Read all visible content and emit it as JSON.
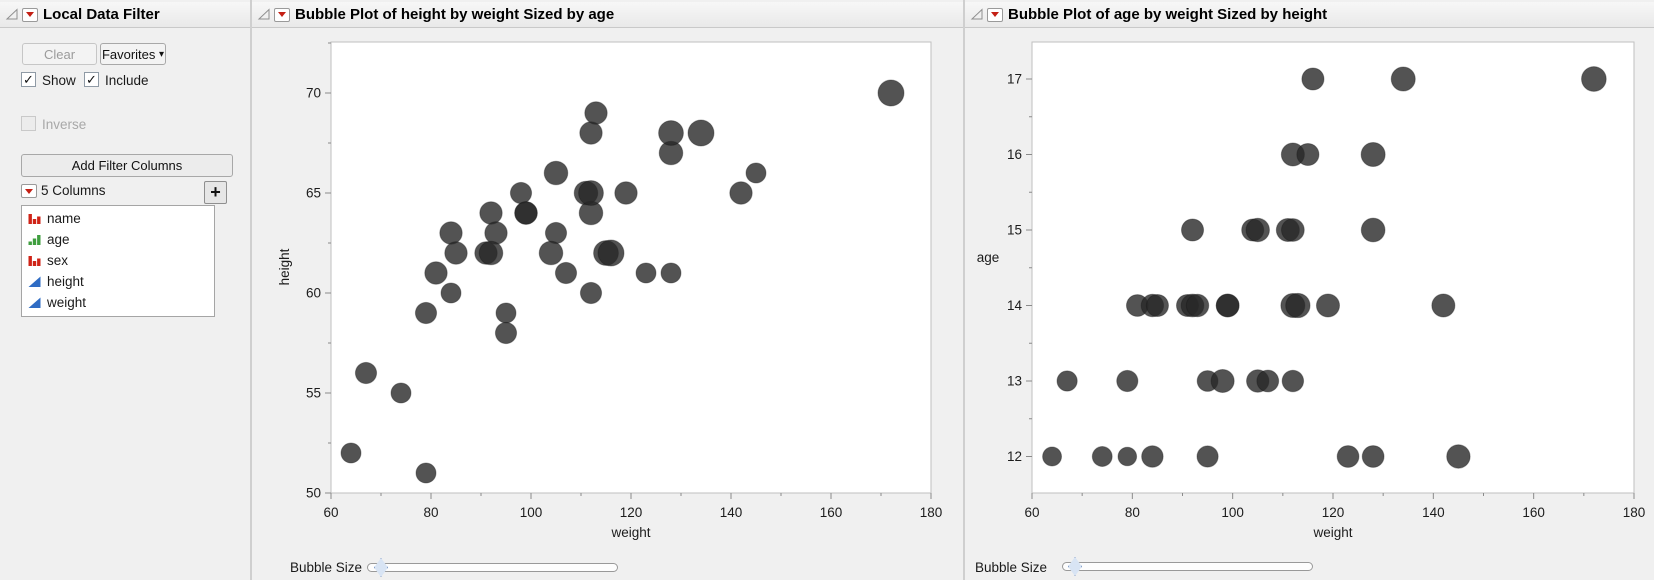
{
  "filter_panel": {
    "title": "Local Data Filter",
    "clear_label": "Clear",
    "favorites_label": "Favorites",
    "favorites_arrow": "▾",
    "show_label": "Show",
    "include_label": "Include",
    "check_glyph": "✓",
    "inverse_label": "Inverse",
    "add_columns_label": "Add Filter Columns",
    "columns_count_label": "5 Columns",
    "plus_label": "+",
    "columns": [
      {
        "label": "name",
        "type": "nominal"
      },
      {
        "label": "age",
        "type": "ordinal"
      },
      {
        "label": "sex",
        "type": "nominal"
      },
      {
        "label": "height",
        "type": "continuous"
      },
      {
        "label": "weight",
        "type": "continuous"
      }
    ]
  },
  "left_plot": {
    "title": "Bubble Plot of height by weight Sized by age",
    "bubble_size_label": "Bubble Size"
  },
  "right_plot": {
    "title": "Bubble Plot of age by weight Sized by height",
    "bubble_size_label": "Bubble Size"
  },
  "colors": {
    "nominal_icon": "#cf2317",
    "ordinal_icon": "#3f9e3f",
    "continuous_icon": "#2f6cc4",
    "bubble_fill": "rgba(40,40,40,0.80)",
    "bubble_stroke": "rgba(20,20,20,0.35)",
    "menu_red": "#c42015",
    "plot_border": "#bfbfbf",
    "tick": "#8a8a8a",
    "axis_text": "#1c1c1c"
  },
  "chart_data": [
    {
      "type": "bubble",
      "title": "Bubble Plot of height by weight Sized by age",
      "xlabel": "weight",
      "ylabel": "height",
      "size_by": "age",
      "xlim": [
        60,
        180
      ],
      "ylim": [
        50,
        72.5
      ],
      "x_ticks": [
        60,
        80,
        100,
        120,
        140,
        160,
        180
      ],
      "y_ticks": [
        50,
        55,
        60,
        65,
        70
      ],
      "grid": false,
      "legend": "none",
      "points": [
        {
          "weight": 64,
          "height": 52,
          "age": 12
        },
        {
          "weight": 74,
          "height": 55,
          "age": 12
        },
        {
          "weight": 79,
          "height": 51,
          "age": 12
        },
        {
          "weight": 84,
          "height": 60,
          "age": 12
        },
        {
          "weight": 95,
          "height": 59,
          "age": 12
        },
        {
          "weight": 123,
          "height": 61,
          "age": 12
        },
        {
          "weight": 128,
          "height": 61,
          "age": 12
        },
        {
          "weight": 145,
          "height": 66,
          "age": 12
        },
        {
          "weight": 67,
          "height": 56,
          "age": 13
        },
        {
          "weight": 79,
          "height": 59,
          "age": 13
        },
        {
          "weight": 95,
          "height": 58,
          "age": 13
        },
        {
          "weight": 98,
          "height": 65,
          "age": 13
        },
        {
          "weight": 105,
          "height": 63,
          "age": 13
        },
        {
          "weight": 107,
          "height": 61,
          "age": 13
        },
        {
          "weight": 112,
          "height": 60,
          "age": 13
        },
        {
          "weight": 81,
          "height": 61,
          "age": 14
        },
        {
          "weight": 84,
          "height": 63,
          "age": 14
        },
        {
          "weight": 85,
          "height": 62,
          "age": 14
        },
        {
          "weight": 91,
          "height": 62,
          "age": 14
        },
        {
          "weight": 92,
          "height": 64,
          "age": 14
        },
        {
          "weight": 93,
          "height": 63,
          "age": 14
        },
        {
          "weight": 99,
          "height": 64,
          "age": 14
        },
        {
          "weight": 99,
          "height": 64,
          "age": 14
        },
        {
          "weight": 112,
          "height": 68,
          "age": 14
        },
        {
          "weight": 113,
          "height": 69,
          "age": 14
        },
        {
          "weight": 119,
          "height": 65,
          "age": 14
        },
        {
          "weight": 142,
          "height": 65,
          "age": 14
        },
        {
          "weight": 92,
          "height": 62,
          "age": 15
        },
        {
          "weight": 104,
          "height": 62,
          "age": 15
        },
        {
          "weight": 105,
          "height": 66,
          "age": 15
        },
        {
          "weight": 111,
          "height": 65,
          "age": 15
        },
        {
          "weight": 112,
          "height": 64,
          "age": 15
        },
        {
          "weight": 128,
          "height": 67,
          "age": 15
        },
        {
          "weight": 112,
          "height": 65,
          "age": 16
        },
        {
          "weight": 115,
          "height": 62,
          "age": 16
        },
        {
          "weight": 128,
          "height": 68,
          "age": 16
        },
        {
          "weight": 116,
          "height": 62,
          "age": 17
        },
        {
          "weight": 134,
          "height": 68,
          "age": 17
        },
        {
          "weight": 172,
          "height": 70,
          "age": 17
        }
      ]
    },
    {
      "type": "bubble",
      "title": "Bubble Plot of age by weight Sized by height",
      "xlabel": "weight",
      "ylabel": "age",
      "size_by": "height",
      "xlim": [
        60,
        180
      ],
      "ylim": [
        11.2,
        17.5
      ],
      "x_ticks": [
        60,
        80,
        100,
        120,
        140,
        160,
        180
      ],
      "y_ticks": [
        12,
        13,
        14,
        15,
        16,
        17
      ],
      "grid": false,
      "legend": "none",
      "points": [
        {
          "weight": 64,
          "height": 52,
          "age": 12
        },
        {
          "weight": 74,
          "height": 55,
          "age": 12
        },
        {
          "weight": 79,
          "height": 51,
          "age": 12
        },
        {
          "weight": 84,
          "height": 60,
          "age": 12
        },
        {
          "weight": 95,
          "height": 59,
          "age": 12
        },
        {
          "weight": 123,
          "height": 61,
          "age": 12
        },
        {
          "weight": 128,
          "height": 61,
          "age": 12
        },
        {
          "weight": 145,
          "height": 66,
          "age": 12
        },
        {
          "weight": 67,
          "height": 56,
          "age": 13
        },
        {
          "weight": 79,
          "height": 59,
          "age": 13
        },
        {
          "weight": 95,
          "height": 58,
          "age": 13
        },
        {
          "weight": 98,
          "height": 65,
          "age": 13
        },
        {
          "weight": 105,
          "height": 63,
          "age": 13
        },
        {
          "weight": 107,
          "height": 61,
          "age": 13
        },
        {
          "weight": 112,
          "height": 60,
          "age": 13
        },
        {
          "weight": 81,
          "height": 61,
          "age": 14
        },
        {
          "weight": 84,
          "height": 63,
          "age": 14
        },
        {
          "weight": 85,
          "height": 62,
          "age": 14
        },
        {
          "weight": 91,
          "height": 62,
          "age": 14
        },
        {
          "weight": 92,
          "height": 64,
          "age": 14
        },
        {
          "weight": 93,
          "height": 63,
          "age": 14
        },
        {
          "weight": 99,
          "height": 64,
          "age": 14
        },
        {
          "weight": 99,
          "height": 64,
          "age": 14
        },
        {
          "weight": 112,
          "height": 68,
          "age": 14
        },
        {
          "weight": 113,
          "height": 69,
          "age": 14
        },
        {
          "weight": 119,
          "height": 65,
          "age": 14
        },
        {
          "weight": 142,
          "height": 65,
          "age": 14
        },
        {
          "weight": 92,
          "height": 62,
          "age": 15
        },
        {
          "weight": 104,
          "height": 62,
          "age": 15
        },
        {
          "weight": 105,
          "height": 66,
          "age": 15
        },
        {
          "weight": 111,
          "height": 65,
          "age": 15
        },
        {
          "weight": 112,
          "height": 64,
          "age": 15
        },
        {
          "weight": 128,
          "height": 67,
          "age": 15
        },
        {
          "weight": 112,
          "height": 65,
          "age": 16
        },
        {
          "weight": 115,
          "height": 62,
          "age": 16
        },
        {
          "weight": 128,
          "height": 68,
          "age": 16
        },
        {
          "weight": 116,
          "height": 62,
          "age": 17
        },
        {
          "weight": 134,
          "height": 68,
          "age": 17
        },
        {
          "weight": 172,
          "height": 70,
          "age": 17
        }
      ]
    }
  ]
}
